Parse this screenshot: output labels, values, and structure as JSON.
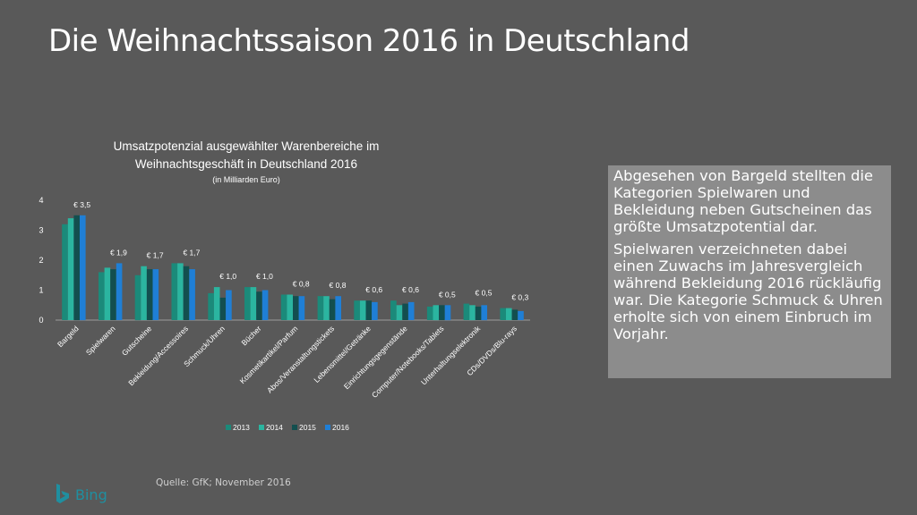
{
  "slide": {
    "title": "Die Weihnachtssaison 2016 in Deutschland",
    "callout_paragraphs": [
      "Abgesehen von Bargeld stellten die Kategorien Spielwaren und Bekleidung neben Gutscheinen das größte Umsatzpotential dar.",
      "Spielwaren verzeichneten dabei einen Zuwachs im Jahresvergleich während Bekleidung 2016 rückläufig war. Die Kategorie Schmuck & Uhren erholte sich von einem Einbruch im Vorjahr."
    ],
    "source": "Quelle: GfK; November 2016",
    "logo_text": "Bing"
  },
  "colors": {
    "background": "#595959",
    "s2013": "#1b8a7a",
    "s2014": "#2bb5a0",
    "s2015": "#134f4f",
    "s2016": "#1f7fd6",
    "callout_bg": "#8c8c8c"
  },
  "chart_data": {
    "type": "bar",
    "title_lines": [
      "Umsatzpotenzial ausgewählter Warenbereiche im",
      "Weihnachtsgeschäft in Deutschland 2016"
    ],
    "subtitle": "(in Milliarden Euro)",
    "categories": [
      "Bargeld",
      "Spielwaren",
      "Gutscheine",
      "Bekleidung/Accessoires",
      "Schmuck/Uhren",
      "Bücher",
      "Kosmetikartikel/Parfum",
      "Abos/Veranstaltungstickets",
      "Lebensmittel/Getränke",
      "Einrichtungsgegenstände",
      "Computer/Notebooks/Tablets",
      "Unterhaltungselektronik",
      "CDs/DVDs/Blu-rays"
    ],
    "series": [
      {
        "name": "2013",
        "values": [
          3.2,
          1.6,
          1.5,
          1.9,
          0.9,
          1.1,
          0.85,
          0.8,
          0.65,
          0.65,
          0.45,
          0.55,
          0.4
        ]
      },
      {
        "name": "2014",
        "values": [
          3.4,
          1.75,
          1.8,
          1.9,
          1.1,
          1.1,
          0.85,
          0.8,
          0.65,
          0.5,
          0.5,
          0.5,
          0.4
        ]
      },
      {
        "name": "2015",
        "values": [
          3.5,
          1.7,
          1.7,
          1.8,
          0.75,
          0.95,
          0.8,
          0.7,
          0.65,
          0.55,
          0.5,
          0.45,
          0.35
        ]
      },
      {
        "name": "2016",
        "values": [
          3.5,
          1.9,
          1.7,
          1.7,
          1.0,
          1.0,
          0.8,
          0.8,
          0.6,
          0.6,
          0.5,
          0.5,
          0.3
        ]
      }
    ],
    "data_labels": [
      "€ 3,5",
      "€ 1,9",
      "€ 1,7",
      "€ 1,7",
      "€ 1,0",
      "€ 1,0",
      "€ 0,8",
      "€ 0,8",
      "€ 0,6",
      "€ 0,6",
      "€ 0,5",
      "€ 0,5",
      "€ 0,3"
    ],
    "yticks": [
      0,
      1,
      2,
      3,
      4
    ],
    "ylim": [
      0,
      4
    ],
    "legend_position": "bottom",
    "grid": false
  }
}
